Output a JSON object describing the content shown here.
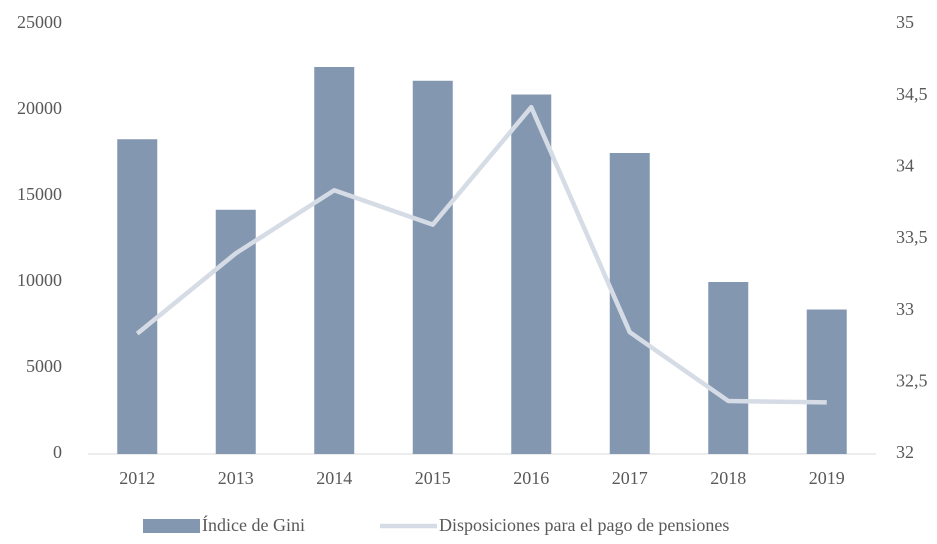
{
  "chart_data": {
    "type": "bar-line",
    "categories": [
      "2012",
      "2013",
      "2014",
      "2015",
      "2016",
      "2017",
      "2018",
      "2019"
    ],
    "series": [
      {
        "name": "Índice de Gini",
        "type": "bar",
        "color": "#8497b0",
        "values": [
          18300,
          14200,
          22500,
          21700,
          20900,
          17500,
          10000,
          8400
        ]
      },
      {
        "name": "Disposiciones para el pago de pensiones",
        "type": "line",
        "axis": "y2",
        "color": "#d6dce5",
        "values": [
          32.84,
          33.4,
          33.84,
          33.6,
          34.42,
          32.85,
          32.37,
          32.36
        ]
      }
    ],
    "ylim": [
      0,
      25000
    ],
    "yticks": [
      0,
      5000,
      10000,
      15000,
      20000,
      25000
    ],
    "y2lim": [
      32,
      35
    ],
    "y2ticks": [
      32,
      {
        "value": 32.5,
        "label": "32,5"
      },
      33,
      {
        "value": 33.5,
        "label": "33,5"
      },
      34,
      {
        "value": 34.5,
        "label": "34,5"
      },
      35
    ],
    "grid": false,
    "legend": "bottom"
  }
}
